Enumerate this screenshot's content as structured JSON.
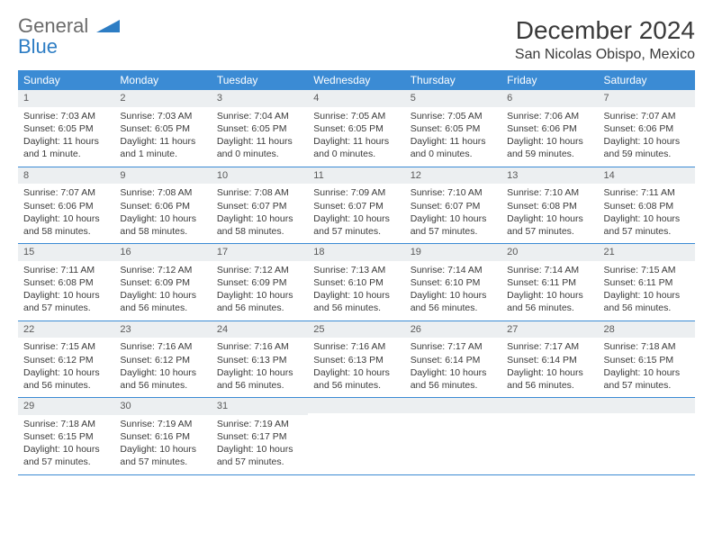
{
  "brand": {
    "part1": "General",
    "part2": "Blue"
  },
  "title": "December 2024",
  "location": "San Nicolas Obispo, Mexico",
  "colors": {
    "header_bg": "#3b8bd4",
    "header_text": "#ffffff",
    "daynum_bg": "#eceff1",
    "text": "#3a3a3a",
    "brand_gray": "#6b6b6b",
    "brand_blue": "#2d7dc4",
    "row_border": "#3b8bd4"
  },
  "day_names": [
    "Sunday",
    "Monday",
    "Tuesday",
    "Wednesday",
    "Thursday",
    "Friday",
    "Saturday"
  ],
  "weeks": [
    [
      {
        "num": "1",
        "sunrise": "Sunrise: 7:03 AM",
        "sunset": "Sunset: 6:05 PM",
        "daylight": "Daylight: 11 hours and 1 minute."
      },
      {
        "num": "2",
        "sunrise": "Sunrise: 7:03 AM",
        "sunset": "Sunset: 6:05 PM",
        "daylight": "Daylight: 11 hours and 1 minute."
      },
      {
        "num": "3",
        "sunrise": "Sunrise: 7:04 AM",
        "sunset": "Sunset: 6:05 PM",
        "daylight": "Daylight: 11 hours and 0 minutes."
      },
      {
        "num": "4",
        "sunrise": "Sunrise: 7:05 AM",
        "sunset": "Sunset: 6:05 PM",
        "daylight": "Daylight: 11 hours and 0 minutes."
      },
      {
        "num": "5",
        "sunrise": "Sunrise: 7:05 AM",
        "sunset": "Sunset: 6:05 PM",
        "daylight": "Daylight: 11 hours and 0 minutes."
      },
      {
        "num": "6",
        "sunrise": "Sunrise: 7:06 AM",
        "sunset": "Sunset: 6:06 PM",
        "daylight": "Daylight: 10 hours and 59 minutes."
      },
      {
        "num": "7",
        "sunrise": "Sunrise: 7:07 AM",
        "sunset": "Sunset: 6:06 PM",
        "daylight": "Daylight: 10 hours and 59 minutes."
      }
    ],
    [
      {
        "num": "8",
        "sunrise": "Sunrise: 7:07 AM",
        "sunset": "Sunset: 6:06 PM",
        "daylight": "Daylight: 10 hours and 58 minutes."
      },
      {
        "num": "9",
        "sunrise": "Sunrise: 7:08 AM",
        "sunset": "Sunset: 6:06 PM",
        "daylight": "Daylight: 10 hours and 58 minutes."
      },
      {
        "num": "10",
        "sunrise": "Sunrise: 7:08 AM",
        "sunset": "Sunset: 6:07 PM",
        "daylight": "Daylight: 10 hours and 58 minutes."
      },
      {
        "num": "11",
        "sunrise": "Sunrise: 7:09 AM",
        "sunset": "Sunset: 6:07 PM",
        "daylight": "Daylight: 10 hours and 57 minutes."
      },
      {
        "num": "12",
        "sunrise": "Sunrise: 7:10 AM",
        "sunset": "Sunset: 6:07 PM",
        "daylight": "Daylight: 10 hours and 57 minutes."
      },
      {
        "num": "13",
        "sunrise": "Sunrise: 7:10 AM",
        "sunset": "Sunset: 6:08 PM",
        "daylight": "Daylight: 10 hours and 57 minutes."
      },
      {
        "num": "14",
        "sunrise": "Sunrise: 7:11 AM",
        "sunset": "Sunset: 6:08 PM",
        "daylight": "Daylight: 10 hours and 57 minutes."
      }
    ],
    [
      {
        "num": "15",
        "sunrise": "Sunrise: 7:11 AM",
        "sunset": "Sunset: 6:08 PM",
        "daylight": "Daylight: 10 hours and 57 minutes."
      },
      {
        "num": "16",
        "sunrise": "Sunrise: 7:12 AM",
        "sunset": "Sunset: 6:09 PM",
        "daylight": "Daylight: 10 hours and 56 minutes."
      },
      {
        "num": "17",
        "sunrise": "Sunrise: 7:12 AM",
        "sunset": "Sunset: 6:09 PM",
        "daylight": "Daylight: 10 hours and 56 minutes."
      },
      {
        "num": "18",
        "sunrise": "Sunrise: 7:13 AM",
        "sunset": "Sunset: 6:10 PM",
        "daylight": "Daylight: 10 hours and 56 minutes."
      },
      {
        "num": "19",
        "sunrise": "Sunrise: 7:14 AM",
        "sunset": "Sunset: 6:10 PM",
        "daylight": "Daylight: 10 hours and 56 minutes."
      },
      {
        "num": "20",
        "sunrise": "Sunrise: 7:14 AM",
        "sunset": "Sunset: 6:11 PM",
        "daylight": "Daylight: 10 hours and 56 minutes."
      },
      {
        "num": "21",
        "sunrise": "Sunrise: 7:15 AM",
        "sunset": "Sunset: 6:11 PM",
        "daylight": "Daylight: 10 hours and 56 minutes."
      }
    ],
    [
      {
        "num": "22",
        "sunrise": "Sunrise: 7:15 AM",
        "sunset": "Sunset: 6:12 PM",
        "daylight": "Daylight: 10 hours and 56 minutes."
      },
      {
        "num": "23",
        "sunrise": "Sunrise: 7:16 AM",
        "sunset": "Sunset: 6:12 PM",
        "daylight": "Daylight: 10 hours and 56 minutes."
      },
      {
        "num": "24",
        "sunrise": "Sunrise: 7:16 AM",
        "sunset": "Sunset: 6:13 PM",
        "daylight": "Daylight: 10 hours and 56 minutes."
      },
      {
        "num": "25",
        "sunrise": "Sunrise: 7:16 AM",
        "sunset": "Sunset: 6:13 PM",
        "daylight": "Daylight: 10 hours and 56 minutes."
      },
      {
        "num": "26",
        "sunrise": "Sunrise: 7:17 AM",
        "sunset": "Sunset: 6:14 PM",
        "daylight": "Daylight: 10 hours and 56 minutes."
      },
      {
        "num": "27",
        "sunrise": "Sunrise: 7:17 AM",
        "sunset": "Sunset: 6:14 PM",
        "daylight": "Daylight: 10 hours and 56 minutes."
      },
      {
        "num": "28",
        "sunrise": "Sunrise: 7:18 AM",
        "sunset": "Sunset: 6:15 PM",
        "daylight": "Daylight: 10 hours and 57 minutes."
      }
    ],
    [
      {
        "num": "29",
        "sunrise": "Sunrise: 7:18 AM",
        "sunset": "Sunset: 6:15 PM",
        "daylight": "Daylight: 10 hours and 57 minutes."
      },
      {
        "num": "30",
        "sunrise": "Sunrise: 7:19 AM",
        "sunset": "Sunset: 6:16 PM",
        "daylight": "Daylight: 10 hours and 57 minutes."
      },
      {
        "num": "31",
        "sunrise": "Sunrise: 7:19 AM",
        "sunset": "Sunset: 6:17 PM",
        "daylight": "Daylight: 10 hours and 57 minutes."
      },
      {
        "empty": true
      },
      {
        "empty": true
      },
      {
        "empty": true
      },
      {
        "empty": true
      }
    ]
  ]
}
